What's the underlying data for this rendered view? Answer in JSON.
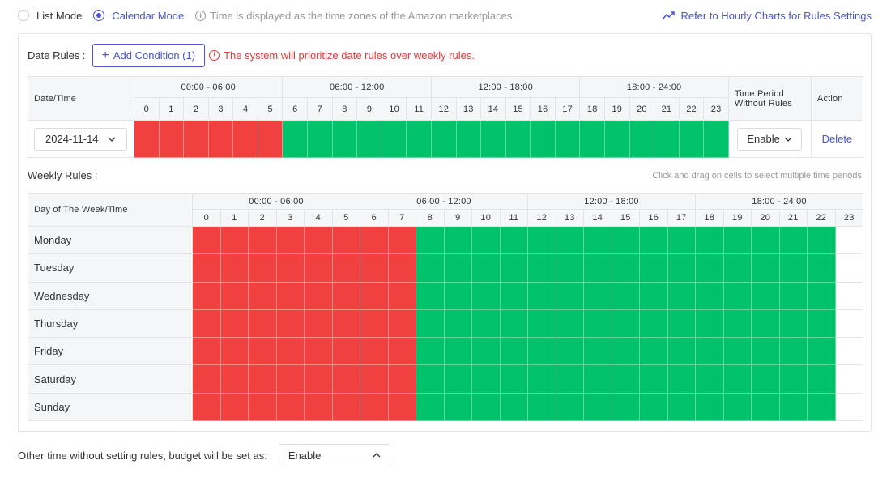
{
  "top": {
    "mode_list": "List Mode",
    "mode_calendar": "Calendar Mode",
    "selected_mode": "calendar",
    "tz_note": "Time is displayed as the time zones of the Amazon marketplaces.",
    "refer_link": "Refer to Hourly Charts for Rules Settings"
  },
  "date_rules": {
    "label": "Date Rules :",
    "add_button": "Add Condition (1)",
    "warning": "The system will prioritize date rules over weekly rules.",
    "col_date": "Date/Time",
    "col_period_line1": "Time Period",
    "col_period_line2": "Without Rules",
    "col_action": "Action",
    "ranges": [
      "00:00 - 06:00",
      "06:00 - 12:00",
      "12:00 - 18:00",
      "18:00 - 24:00"
    ],
    "hours": [
      "0",
      "1",
      "2",
      "3",
      "4",
      "5",
      "6",
      "7",
      "8",
      "9",
      "10",
      "11",
      "12",
      "13",
      "14",
      "15",
      "16",
      "17",
      "18",
      "19",
      "20",
      "21",
      "22",
      "23"
    ],
    "rows": [
      {
        "date": "2024-11-14",
        "cells": [
          "r",
          "r",
          "r",
          "r",
          "r",
          "r",
          "g",
          "g",
          "g",
          "g",
          "g",
          "g",
          "g",
          "g",
          "g",
          "g",
          "g",
          "g",
          "g",
          "g",
          "g",
          "g",
          "g",
          "g"
        ],
        "without_rules": "Enable",
        "action": "Delete"
      }
    ]
  },
  "weekly_rules": {
    "label": "Weekly Rules :",
    "hint": "Click and drag on cells to select multiple time periods",
    "col_day": "Day of The Week/Time",
    "ranges": [
      "00:00 - 06:00",
      "06:00 - 12:00",
      "12:00 - 18:00",
      "18:00 - 24:00"
    ],
    "hours": [
      "0",
      "1",
      "2",
      "3",
      "4",
      "5",
      "6",
      "7",
      "8",
      "9",
      "10",
      "11",
      "12",
      "13",
      "14",
      "15",
      "16",
      "17",
      "18",
      "19",
      "20",
      "21",
      "22",
      "23"
    ],
    "days": [
      {
        "name": "Monday",
        "cells": [
          "r",
          "r",
          "r",
          "r",
          "r",
          "r",
          "r",
          "r",
          "g",
          "g",
          "g",
          "g",
          "g",
          "g",
          "g",
          "g",
          "g",
          "g",
          "g",
          "g",
          "g",
          "g",
          "g",
          "e"
        ]
      },
      {
        "name": "Tuesday",
        "cells": [
          "r",
          "r",
          "r",
          "r",
          "r",
          "r",
          "r",
          "r",
          "g",
          "g",
          "g",
          "g",
          "g",
          "g",
          "g",
          "g",
          "g",
          "g",
          "g",
          "g",
          "g",
          "g",
          "g",
          "e"
        ]
      },
      {
        "name": "Wednesday",
        "cells": [
          "r",
          "r",
          "r",
          "r",
          "r",
          "r",
          "r",
          "r",
          "g",
          "g",
          "g",
          "g",
          "g",
          "g",
          "g",
          "g",
          "g",
          "g",
          "g",
          "g",
          "g",
          "g",
          "g",
          "e"
        ]
      },
      {
        "name": "Thursday",
        "cells": [
          "r",
          "r",
          "r",
          "r",
          "r",
          "r",
          "r",
          "r",
          "g",
          "g",
          "g",
          "g",
          "g",
          "g",
          "g",
          "g",
          "g",
          "g",
          "g",
          "g",
          "g",
          "g",
          "g",
          "e"
        ]
      },
      {
        "name": "Friday",
        "cells": [
          "r",
          "r",
          "r",
          "r",
          "r",
          "r",
          "r",
          "r",
          "g",
          "g",
          "g",
          "g",
          "g",
          "g",
          "g",
          "g",
          "g",
          "g",
          "g",
          "g",
          "g",
          "g",
          "g",
          "e"
        ]
      },
      {
        "name": "Saturday",
        "cells": [
          "r",
          "r",
          "r",
          "r",
          "r",
          "r",
          "r",
          "r",
          "g",
          "g",
          "g",
          "g",
          "g",
          "g",
          "g",
          "g",
          "g",
          "g",
          "g",
          "g",
          "g",
          "g",
          "g",
          "e"
        ]
      },
      {
        "name": "Sunday",
        "cells": [
          "r",
          "r",
          "r",
          "r",
          "r",
          "r",
          "r",
          "r",
          "g",
          "g",
          "g",
          "g",
          "g",
          "g",
          "g",
          "g",
          "g",
          "g",
          "g",
          "g",
          "g",
          "g",
          "g",
          "e"
        ]
      }
    ]
  },
  "bottom": {
    "label": "Other time without setting rules, budget will be set as:",
    "value": "Enable"
  },
  "colors": {
    "accent": "#4a55c9",
    "rule_red": "#f04040",
    "rule_green": "#00c26a",
    "warning": "#e03b3b"
  }
}
